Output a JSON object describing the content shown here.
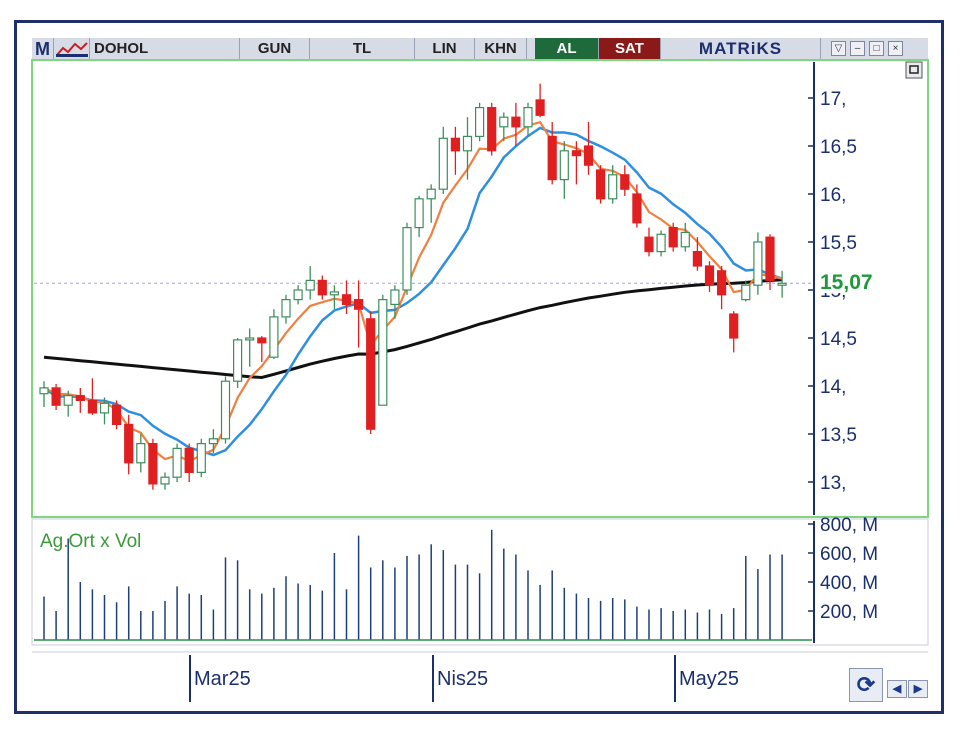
{
  "toolbar": {
    "menu_letter": "M",
    "symbol": "DOHOL",
    "period": "GUN",
    "currency": "TL",
    "scale": "LIN",
    "khn": "KHN",
    "buy": "AL",
    "sell": "SAT",
    "brand": "MATRiKS"
  },
  "colors": {
    "up_candle": "#3c8f5c",
    "down_candle": "#e02020",
    "ma_short": "#f08040",
    "ma_mid": "#2e8fe0",
    "ma_long": "#111111",
    "volume": "#1f3f7a",
    "axis_text": "#1b2f6e",
    "last_price": "#1e9a3a",
    "price_panel_border": "#6fd06f"
  },
  "chart_data": {
    "type": "candlestick",
    "last_price_label": "15,07",
    "last_price": 15.07,
    "price_axis": {
      "ylim": [
        12.65,
        17.35
      ],
      "ticks": [
        "13,",
        "13,5",
        "14,",
        "14,5",
        "15,",
        "15,5",
        "16,",
        "16,5",
        "17,"
      ]
    },
    "volume_axis": {
      "label": "Ag.Ort x Vol",
      "ylim": [
        0,
        850
      ],
      "ticks": [
        "200, M",
        "400, M",
        "600, M",
        "800, M"
      ]
    },
    "x_labels": [
      "Mar25",
      "Nis25",
      "May25"
    ],
    "candles": [
      [
        13.92,
        14.05,
        13.78,
        13.98
      ],
      [
        13.98,
        14.02,
        13.75,
        13.8
      ],
      [
        13.8,
        13.95,
        13.68,
        13.9
      ],
      [
        13.9,
        13.98,
        13.72,
        13.85
      ],
      [
        13.85,
        14.08,
        13.7,
        13.72
      ],
      [
        13.72,
        13.88,
        13.6,
        13.82
      ],
      [
        13.8,
        13.85,
        13.55,
        13.6
      ],
      [
        13.6,
        13.7,
        13.08,
        13.2
      ],
      [
        13.2,
        13.5,
        13.1,
        13.4
      ],
      [
        13.4,
        13.45,
        12.92,
        12.98
      ],
      [
        12.98,
        13.1,
        12.92,
        13.05
      ],
      [
        13.05,
        13.4,
        13.0,
        13.35
      ],
      [
        13.35,
        13.4,
        13.0,
        13.1
      ],
      [
        13.1,
        13.45,
        13.05,
        13.4
      ],
      [
        13.4,
        13.55,
        13.3,
        13.45
      ],
      [
        13.45,
        14.1,
        13.4,
        14.05
      ],
      [
        14.05,
        14.5,
        13.98,
        14.48
      ],
      [
        14.48,
        14.6,
        14.2,
        14.5
      ],
      [
        14.5,
        14.52,
        14.25,
        14.45
      ],
      [
        14.3,
        14.8,
        14.28,
        14.72
      ],
      [
        14.72,
        14.95,
        14.65,
        14.9
      ],
      [
        14.9,
        15.05,
        14.85,
        15.0
      ],
      [
        15.0,
        15.25,
        14.9,
        15.1
      ],
      [
        15.1,
        15.15,
        14.9,
        14.95
      ],
      [
        14.95,
        15.05,
        14.8,
        14.98
      ],
      [
        14.95,
        15.1,
        14.75,
        14.85
      ],
      [
        14.9,
        15.1,
        14.4,
        14.8
      ],
      [
        14.7,
        14.78,
        13.5,
        13.55
      ],
      [
        13.8,
        14.95,
        13.8,
        14.9
      ],
      [
        14.85,
        15.05,
        14.7,
        15.0
      ],
      [
        15.0,
        15.7,
        14.95,
        15.65
      ],
      [
        15.65,
        15.98,
        15.55,
        15.95
      ],
      [
        15.95,
        16.1,
        15.7,
        16.05
      ],
      [
        16.05,
        16.7,
        16.0,
        16.58
      ],
      [
        16.58,
        16.7,
        16.2,
        16.45
      ],
      [
        16.45,
        16.8,
        16.15,
        16.6
      ],
      [
        16.6,
        16.95,
        16.55,
        16.9
      ],
      [
        16.9,
        16.95,
        16.4,
        16.45
      ],
      [
        16.7,
        16.85,
        16.55,
        16.8
      ],
      [
        16.8,
        16.95,
        16.5,
        16.7
      ],
      [
        16.7,
        16.95,
        16.6,
        16.9
      ],
      [
        16.98,
        17.15,
        16.8,
        16.82
      ],
      [
        16.6,
        16.75,
        16.1,
        16.15
      ],
      [
        16.15,
        16.55,
        15.95,
        16.45
      ],
      [
        16.45,
        16.55,
        16.1,
        16.4
      ],
      [
        16.5,
        16.75,
        16.2,
        16.3
      ],
      [
        16.25,
        16.3,
        15.9,
        15.95
      ],
      [
        15.95,
        16.3,
        15.9,
        16.2
      ],
      [
        16.2,
        16.3,
        15.98,
        16.05
      ],
      [
        16.0,
        16.1,
        15.65,
        15.7
      ],
      [
        15.55,
        15.65,
        15.35,
        15.4
      ],
      [
        15.4,
        15.62,
        15.35,
        15.58
      ],
      [
        15.65,
        15.7,
        15.4,
        15.45
      ],
      [
        15.45,
        15.7,
        15.4,
        15.6
      ],
      [
        15.4,
        15.55,
        15.2,
        15.25
      ],
      [
        15.25,
        15.3,
        14.98,
        15.05
      ],
      [
        15.2,
        15.25,
        14.8,
        14.95
      ],
      [
        14.75,
        14.78,
        14.35,
        14.5
      ],
      [
        14.9,
        15.1,
        14.88,
        15.05
      ],
      [
        15.05,
        15.6,
        14.95,
        15.5
      ],
      [
        15.55,
        15.58,
        15.0,
        15.1
      ],
      [
        15.05,
        15.2,
        14.92,
        15.07
      ]
    ],
    "volume": [
      300,
      200,
      700,
      400,
      350,
      310,
      260,
      370,
      200,
      200,
      270,
      370,
      320,
      310,
      210,
      570,
      550,
      350,
      320,
      360,
      440,
      390,
      380,
      340,
      600,
      350,
      720,
      500,
      550,
      500,
      580,
      590,
      660,
      620,
      520,
      520,
      460,
      760,
      630,
      590,
      480,
      380,
      480,
      360,
      320,
      290,
      270,
      290,
      280,
      230,
      210,
      220,
      200,
      210,
      190,
      210,
      180,
      220,
      580,
      490,
      590,
      590
    ]
  }
}
